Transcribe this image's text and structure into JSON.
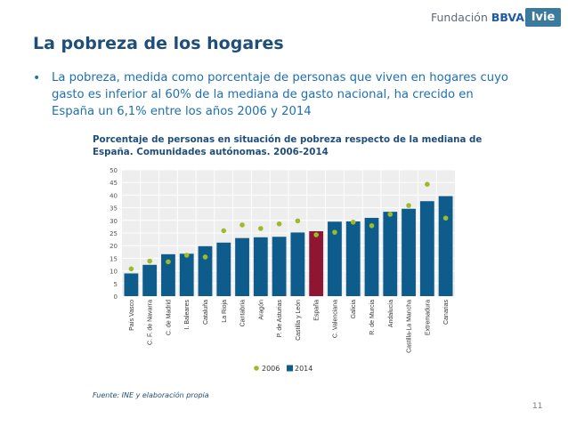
{
  "header": {
    "brand_prefix": "Fundación",
    "brand_name": "BBVA",
    "partner_logo": "Ivie"
  },
  "slide": {
    "title": "La pobreza de los hogares",
    "bullet_symbol": "•",
    "bullet_text": "La pobreza, medida como porcentaje de personas que viven en hogares cuyo gasto es inferior al 60% de la mediana de gasto nacional, ha crecido en España un 6,1% entre los años 2006 y 2014",
    "source": "Fuente: INE y elaboración propia",
    "page_number": "11"
  },
  "chart_data": {
    "type": "bar",
    "title": "Porcentaje de personas en situación de pobreza respecto de la mediana de España. Comunidades autónomas. 2006-2014",
    "categories": [
      "País Vasco",
      "C. F. de Navarra",
      "C. de Madrid",
      "I. Baleares",
      "Cataluña",
      "La Rioja",
      "Cantabria",
      "Aragón",
      "P. de Asturias",
      "Castilla y León",
      "España",
      "C. Valenciana",
      "Galicia",
      "R. de Murcia",
      "Andalucía",
      "Castilla-La Mancha",
      "Extremadura",
      "Canarias"
    ],
    "ylim": [
      0,
      50
    ],
    "yticks": [
      0,
      5,
      10,
      15,
      20,
      25,
      30,
      35,
      40,
      45,
      50
    ],
    "grid": true,
    "highlight_category": "España",
    "legend_position": "bottom",
    "series": [
      {
        "name": "2006",
        "kind": "point",
        "color": "#9bbb29",
        "values": [
          10.8,
          13.9,
          13.6,
          16.2,
          15.5,
          25.9,
          28.2,
          26.8,
          28.6,
          29.8,
          24.3,
          25.3,
          29.3,
          27.9,
          32.4,
          35.9,
          44.3,
          30.9
        ]
      },
      {
        "name": "2014",
        "kind": "bar",
        "color": "#0d5c8c",
        "highlight_color": "#8f1633",
        "values": [
          9.0,
          12.4,
          16.6,
          16.8,
          19.8,
          21.2,
          23.0,
          23.3,
          23.5,
          25.2,
          25.7,
          29.5,
          29.6,
          31.0,
          33.4,
          34.6,
          37.6,
          39.6
        ]
      }
    ]
  }
}
